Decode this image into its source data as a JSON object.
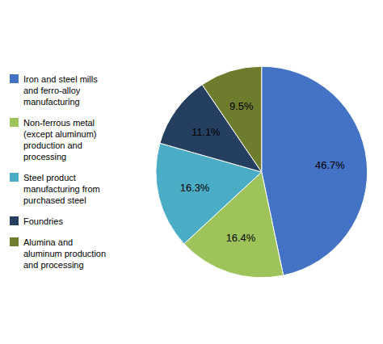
{
  "chart_data": {
    "type": "pie",
    "categories": [
      "Iron and steel mills\nand ferro-alloy\nmanufacturing",
      "Non-ferrous metal\n(except aluminum)\nproduction and\nprocessing",
      "Steel product\nmanufacturing from\npurchased steel",
      "Foundries",
      "Alumina and\naluminum production\nand processing"
    ],
    "values": [
      46.7,
      16.4,
      16.3,
      11.1,
      9.5
    ],
    "value_labels": [
      "46.7%",
      "16.4%",
      "16.3%",
      "11.1%",
      "9.5%"
    ],
    "colors": [
      "#4472c4",
      "#9dc35a",
      "#4bacc6",
      "#243f60",
      "#6e7c2e"
    ],
    "data_labels": true,
    "legend": "left"
  }
}
